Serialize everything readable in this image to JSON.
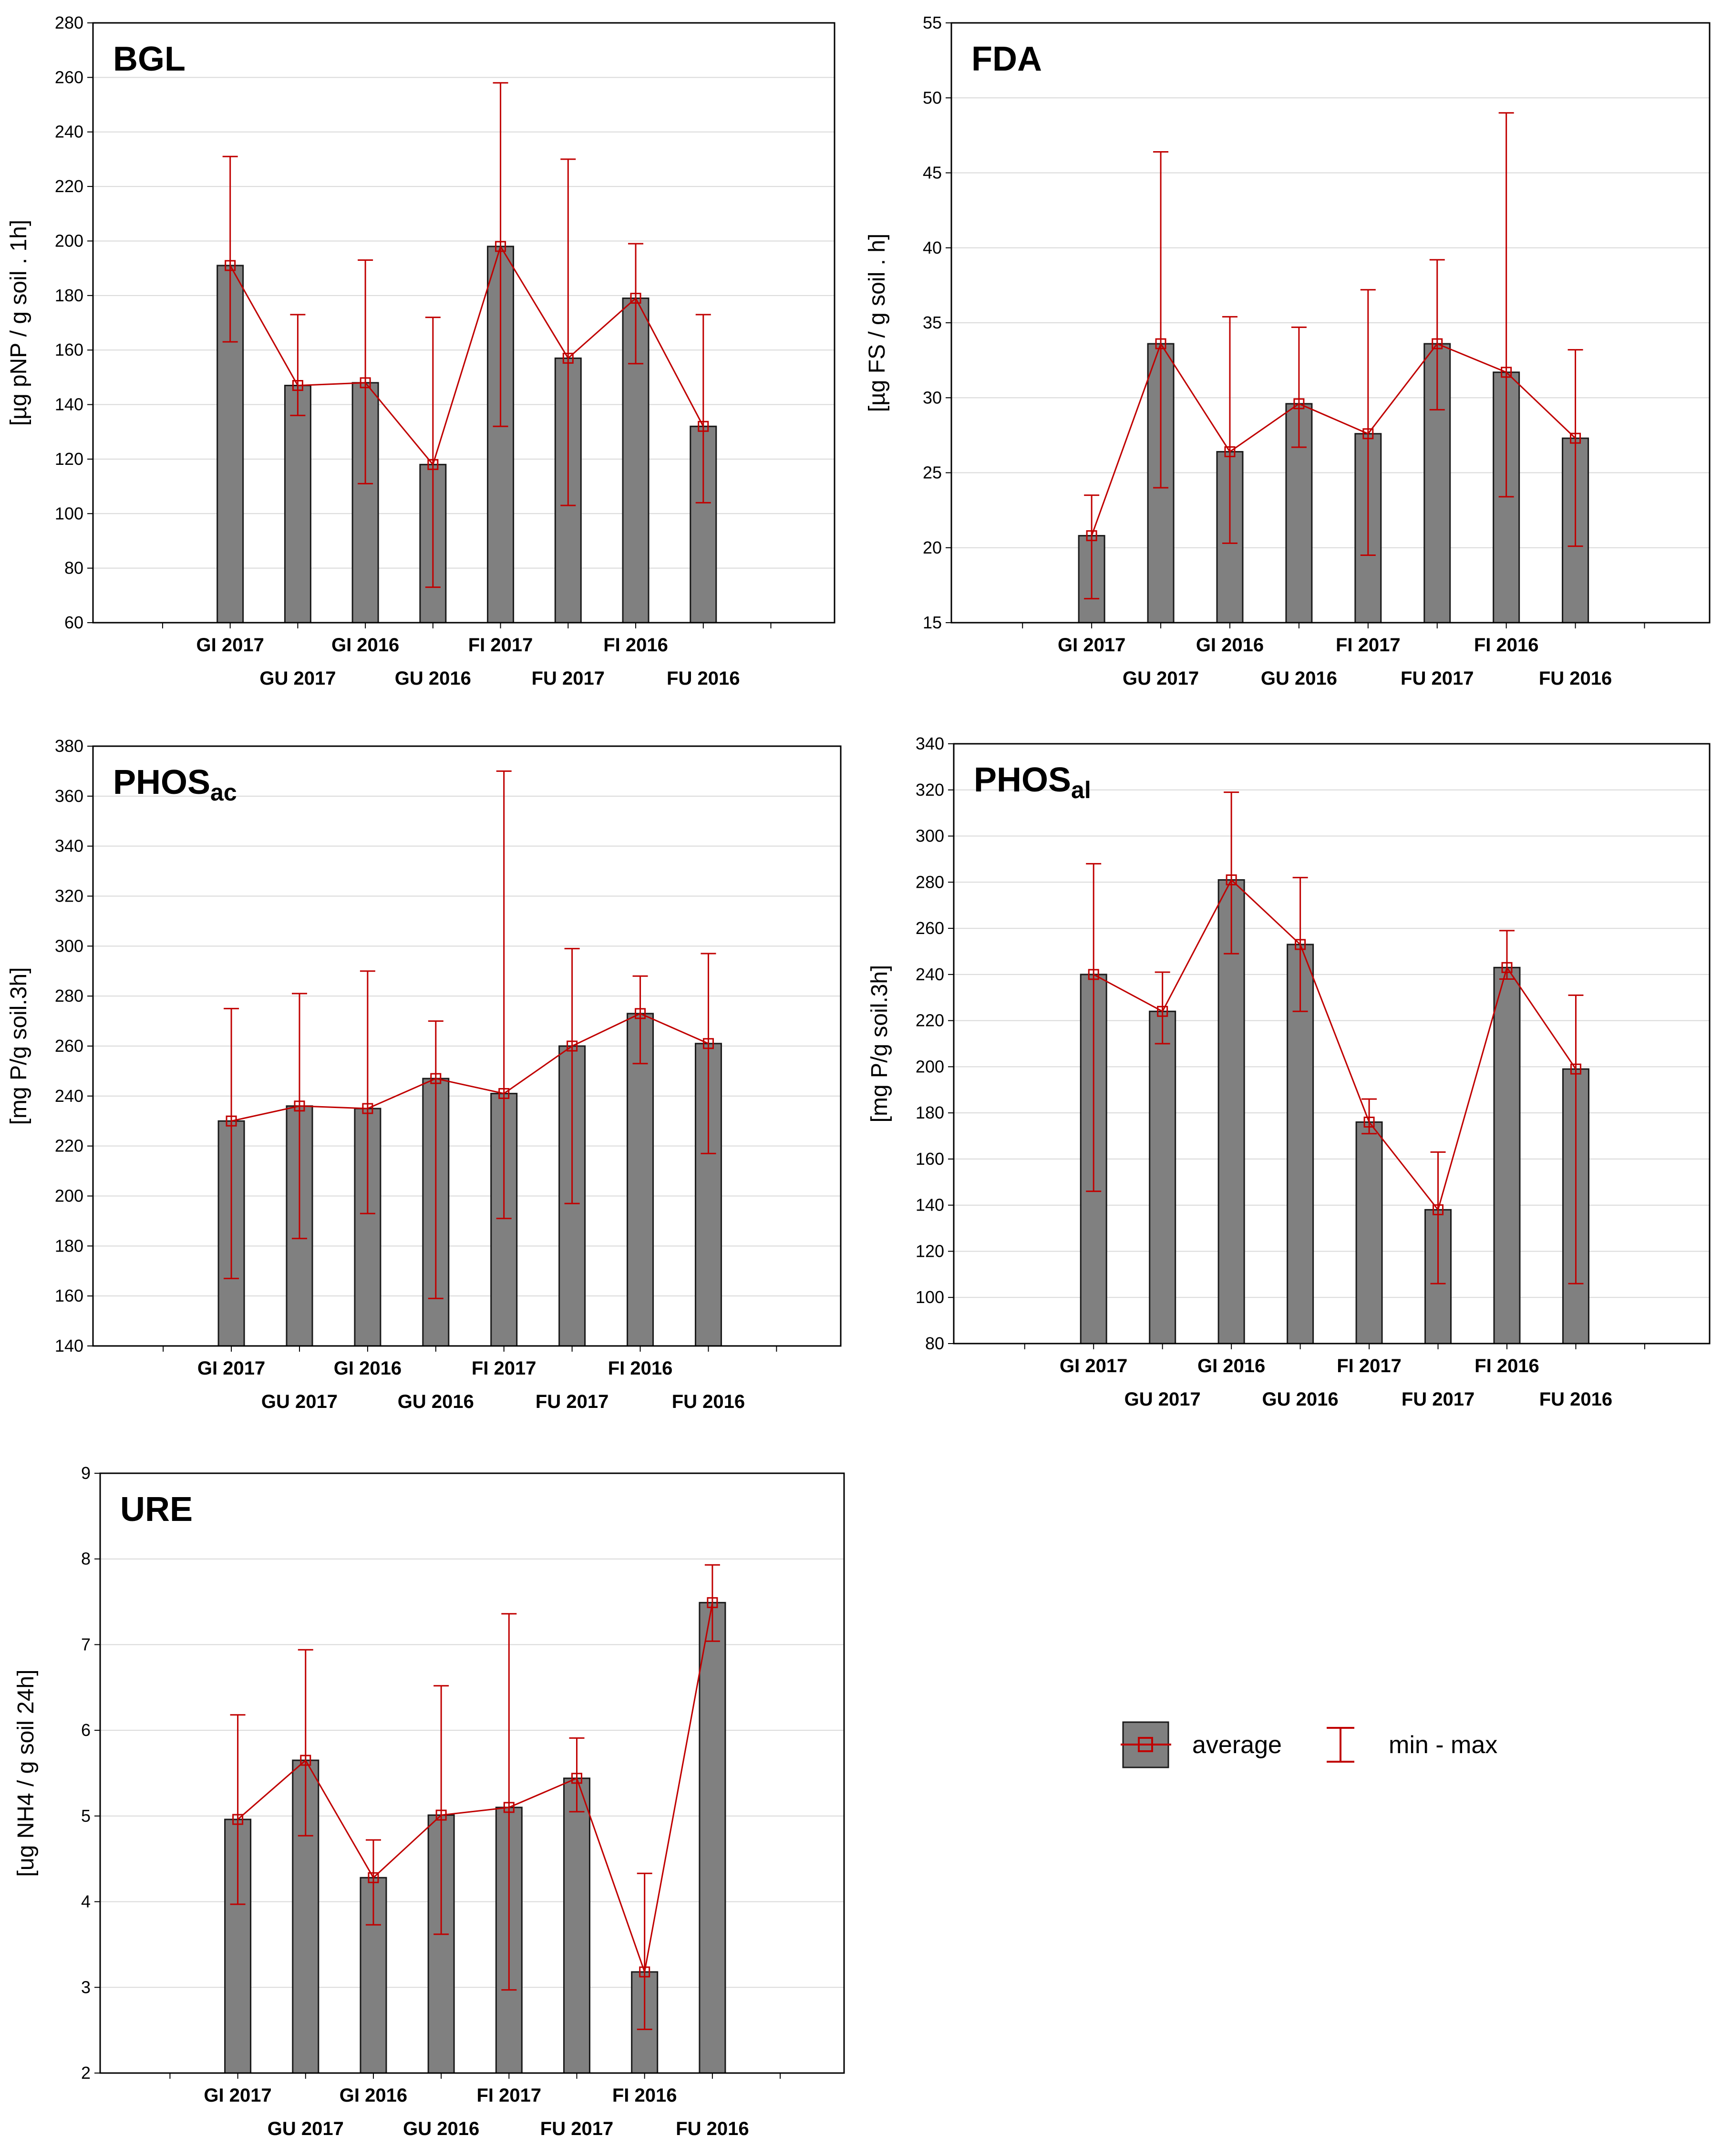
{
  "legend": {
    "average_label": "average",
    "minmax_label": "min - max"
  },
  "colors": {
    "bar_fill": "#808080",
    "bar_stroke": "#1a1a1a",
    "line": "#c00000",
    "grid": "#d9d9d9",
    "axis": "#000000"
  },
  "chart_data": [
    {
      "id": "bgl",
      "type": "bar",
      "title": "BGL",
      "title_sub": "",
      "ylabel": "[µg pNP / g soil . 1h]",
      "ylim": [
        60,
        280
      ],
      "ytick_step": 20,
      "categories": [
        "GI 2017",
        "GU 2017",
        "GI 2016",
        "GU 2016",
        "FI 2017",
        "FU 2017",
        "FI 2016",
        "FU 2016"
      ],
      "values": [
        191,
        147,
        148,
        118,
        198,
        157,
        179,
        132
      ],
      "min": [
        163,
        136,
        111,
        73,
        132,
        103,
        155,
        104
      ],
      "max": [
        231,
        173,
        193,
        172,
        258,
        230,
        199,
        173
      ]
    },
    {
      "id": "fda",
      "type": "bar",
      "title": "FDA",
      "title_sub": "",
      "ylabel": "[µg FS / g soil . h]",
      "ylim": [
        15,
        55
      ],
      "ytick_step": 5,
      "categories": [
        "GI 2017",
        "GU 2017",
        "GI 2016",
        "GU 2016",
        "FI 2017",
        "FU 2017",
        "FI 2016",
        "FU 2016"
      ],
      "values": [
        20.8,
        33.6,
        26.4,
        29.6,
        27.6,
        33.6,
        31.7,
        27.3
      ],
      "min": [
        16.6,
        24.0,
        20.3,
        26.7,
        19.5,
        29.2,
        23.4,
        20.1
      ],
      "max": [
        23.5,
        46.4,
        35.4,
        34.7,
        37.2,
        39.2,
        49.0,
        33.2
      ]
    },
    {
      "id": "phos_ac",
      "type": "bar",
      "title": "PHOS",
      "title_sub": "ac",
      "ylabel": "[mg P/g soil.3h]",
      "ylim": [
        140,
        380
      ],
      "ytick_step": 20,
      "categories": [
        "GI 2017",
        "GU 2017",
        "GI 2016",
        "GU 2016",
        "FI 2017",
        "FU 2017",
        "FI 2016",
        "FU 2016"
      ],
      "values": [
        230,
        236,
        235,
        247,
        241,
        260,
        273,
        261
      ],
      "min": [
        167,
        183,
        193,
        159,
        191,
        197,
        253,
        217
      ],
      "max": [
        275,
        281,
        290,
        270,
        370,
        299,
        288,
        297
      ]
    },
    {
      "id": "phos_al",
      "type": "bar",
      "title": "PHOS",
      "title_sub": "al",
      "ylabel": "[mg P/g soil.3h]",
      "ylim": [
        80,
        340
      ],
      "ytick_step": 20,
      "categories": [
        "GI 2017",
        "GU 2017",
        "GI 2016",
        "GU 2016",
        "FI 2017",
        "FU 2017",
        "FI 2016",
        "FU 2016"
      ],
      "values": [
        240,
        224,
        281,
        253,
        176,
        138,
        243,
        199
      ],
      "min": [
        146,
        210,
        249,
        224,
        171,
        106,
        238,
        106
      ],
      "max": [
        288,
        241,
        319,
        282,
        186,
        163,
        259,
        231
      ]
    },
    {
      "id": "ure",
      "type": "bar",
      "title": "URE",
      "title_sub": "",
      "ylabel": "[ug NH4 / g soil 24h]",
      "ylim": [
        2,
        9
      ],
      "ytick_step": 1,
      "categories": [
        "GI 2017",
        "GU 2017",
        "GI 2016",
        "GU 2016",
        "FI 2017",
        "FU 2017",
        "FI 2016",
        "FU 2016"
      ],
      "values": [
        4.96,
        5.65,
        4.28,
        5.01,
        5.1,
        5.44,
        3.18,
        7.49
      ],
      "min": [
        3.97,
        4.77,
        3.73,
        3.62,
        2.97,
        5.05,
        2.51,
        7.04
      ],
      "max": [
        6.18,
        6.94,
        4.72,
        6.52,
        7.36,
        5.91,
        4.33,
        7.93
      ]
    }
  ]
}
